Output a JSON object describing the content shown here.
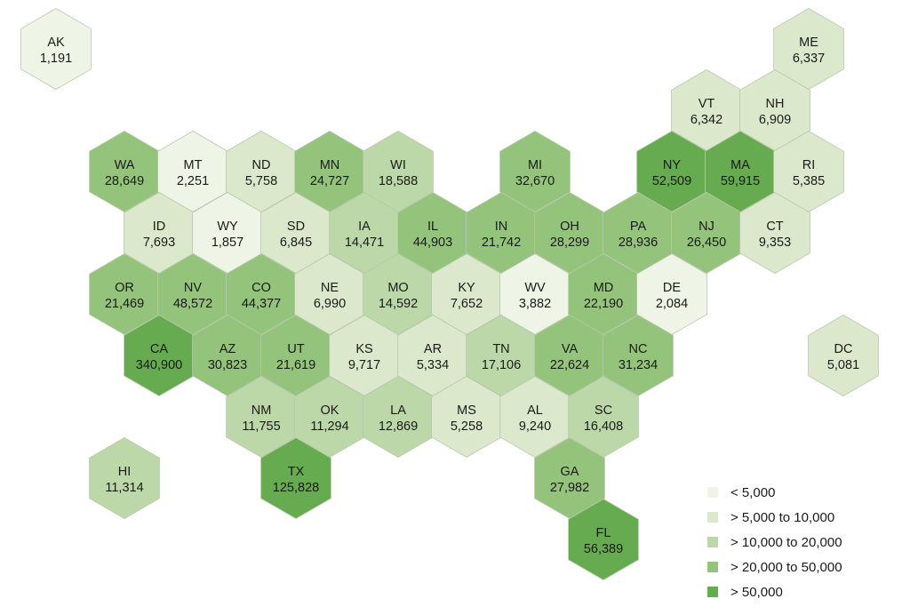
{
  "colors": {
    "bin1": "#eef4e6",
    "bin2": "#dbe8cc",
    "bin3": "#bcd8a8",
    "bin4": "#94c47b",
    "bin5": "#66ab4f",
    "stroke": "#b9c7ad"
  },
  "legend": [
    {
      "label": "< 5,000",
      "color": "#eef4e6"
    },
    {
      "label": "> 5,000 to 10,000",
      "color": "#dbe8cc"
    },
    {
      "label": "> 10,000 to 20,000",
      "color": "#bcd8a8"
    },
    {
      "label": "> 20,000 to 50,000",
      "color": "#94c47b"
    },
    {
      "label": "> 50,000",
      "color": "#66ab4f"
    }
  ],
  "states": [
    {
      "abbr": "AK",
      "value": "1,191",
      "bin": 1
    },
    {
      "abbr": "ME",
      "value": "6,337",
      "bin": 2
    },
    {
      "abbr": "VT",
      "value": "6,342",
      "bin": 2
    },
    {
      "abbr": "NH",
      "value": "6,909",
      "bin": 2
    },
    {
      "abbr": "WA",
      "value": "28,649",
      "bin": 4
    },
    {
      "abbr": "MT",
      "value": "2,251",
      "bin": 1
    },
    {
      "abbr": "ND",
      "value": "5,758",
      "bin": 2
    },
    {
      "abbr": "MN",
      "value": "24,727",
      "bin": 4
    },
    {
      "abbr": "WI",
      "value": "18,588",
      "bin": 3
    },
    {
      "abbr": "MI",
      "value": "32,670",
      "bin": 4
    },
    {
      "abbr": "NY",
      "value": "52,509",
      "bin": 5
    },
    {
      "abbr": "MA",
      "value": "59,915",
      "bin": 5
    },
    {
      "abbr": "RI",
      "value": "5,385",
      "bin": 2
    },
    {
      "abbr": "ID",
      "value": "7,693",
      "bin": 2
    },
    {
      "abbr": "WY",
      "value": "1,857",
      "bin": 1
    },
    {
      "abbr": "SD",
      "value": "6,845",
      "bin": 2
    },
    {
      "abbr": "IA",
      "value": "14,471",
      "bin": 3
    },
    {
      "abbr": "IL",
      "value": "44,903",
      "bin": 4
    },
    {
      "abbr": "IN",
      "value": "21,742",
      "bin": 4
    },
    {
      "abbr": "OH",
      "value": "28,299",
      "bin": 4
    },
    {
      "abbr": "PA",
      "value": "28,936",
      "bin": 4
    },
    {
      "abbr": "NJ",
      "value": "26,450",
      "bin": 4
    },
    {
      "abbr": "CT",
      "value": "9,353",
      "bin": 2
    },
    {
      "abbr": "OR",
      "value": "21,469",
      "bin": 4
    },
    {
      "abbr": "NV",
      "value": "48,572",
      "bin": 4
    },
    {
      "abbr": "CO",
      "value": "44,377",
      "bin": 4
    },
    {
      "abbr": "NE",
      "value": "6,990",
      "bin": 2
    },
    {
      "abbr": "MO",
      "value": "14,592",
      "bin": 3
    },
    {
      "abbr": "KY",
      "value": "7,652",
      "bin": 2
    },
    {
      "abbr": "WV",
      "value": "3,882",
      "bin": 1
    },
    {
      "abbr": "MD",
      "value": "22,190",
      "bin": 4
    },
    {
      "abbr": "DE",
      "value": "2,084",
      "bin": 1
    },
    {
      "abbr": "CA",
      "value": "340,900",
      "bin": 5
    },
    {
      "abbr": "AZ",
      "value": "30,823",
      "bin": 4
    },
    {
      "abbr": "UT",
      "value": "21,619",
      "bin": 4
    },
    {
      "abbr": "KS",
      "value": "9,717",
      "bin": 2
    },
    {
      "abbr": "AR",
      "value": "5,334",
      "bin": 2
    },
    {
      "abbr": "TN",
      "value": "17,106",
      "bin": 3
    },
    {
      "abbr": "VA",
      "value": "22,624",
      "bin": 4
    },
    {
      "abbr": "NC",
      "value": "31,234",
      "bin": 4
    },
    {
      "abbr": "DC",
      "value": "5,081",
      "bin": 2
    },
    {
      "abbr": "NM",
      "value": "11,755",
      "bin": 3
    },
    {
      "abbr": "OK",
      "value": "11,294",
      "bin": 3
    },
    {
      "abbr": "LA",
      "value": "12,869",
      "bin": 3
    },
    {
      "abbr": "MS",
      "value": "5,258",
      "bin": 2
    },
    {
      "abbr": "AL",
      "value": "9,240",
      "bin": 2
    },
    {
      "abbr": "SC",
      "value": "16,408",
      "bin": 3
    },
    {
      "abbr": "HI",
      "value": "11,314",
      "bin": 3
    },
    {
      "abbr": "TX",
      "value": "125,828",
      "bin": 5
    },
    {
      "abbr": "GA",
      "value": "27,982",
      "bin": 4
    },
    {
      "abbr": "FL",
      "value": "56,389",
      "bin": 5
    }
  ]
}
